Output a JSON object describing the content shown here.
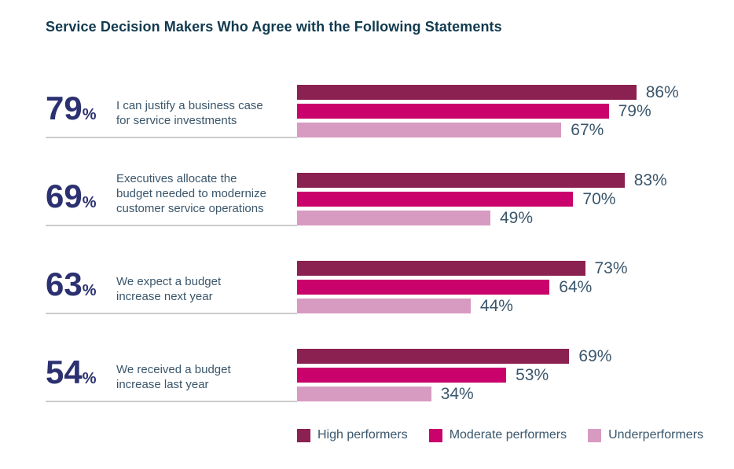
{
  "colors": {
    "title": "#113A4F",
    "big_number": "#2B3170",
    "statement_text": "#3A566B",
    "value_label": "#3A566B",
    "legend_text": "#3A566B",
    "divider": "#CBCBCB"
  },
  "chart_data": {
    "type": "bar",
    "orientation": "horizontal",
    "title": "Service Decision Makers Who Agree with the Following Statements",
    "xlim": [
      0,
      100
    ],
    "value_suffix": "%",
    "legend_position": "bottom-right",
    "grid": false,
    "series": [
      {
        "name": "High performers",
        "color": "#8A2150"
      },
      {
        "name": "Moderate performers",
        "color": "#C9036B"
      },
      {
        "name": "Underperformers",
        "color": "#D79BC1"
      }
    ],
    "groups": [
      {
        "summary_value": "79",
        "summary_suffix": "%",
        "statement_lines": [
          "I can justify a business case",
          "for service investments"
        ],
        "values": [
          86,
          79,
          67
        ]
      },
      {
        "summary_value": "69",
        "summary_suffix": "%",
        "statement_lines": [
          "Executives allocate the",
          "budget needed to modernize",
          "customer service operations"
        ],
        "values": [
          83,
          70,
          49
        ]
      },
      {
        "summary_value": "63",
        "summary_suffix": "%",
        "statement_lines": [
          "We expect a budget",
          "increase next year"
        ],
        "values": [
          73,
          64,
          44
        ]
      },
      {
        "summary_value": "54",
        "summary_suffix": "%",
        "statement_lines": [
          "We received a budget",
          "increase last year"
        ],
        "values": [
          69,
          53,
          34
        ]
      }
    ]
  }
}
